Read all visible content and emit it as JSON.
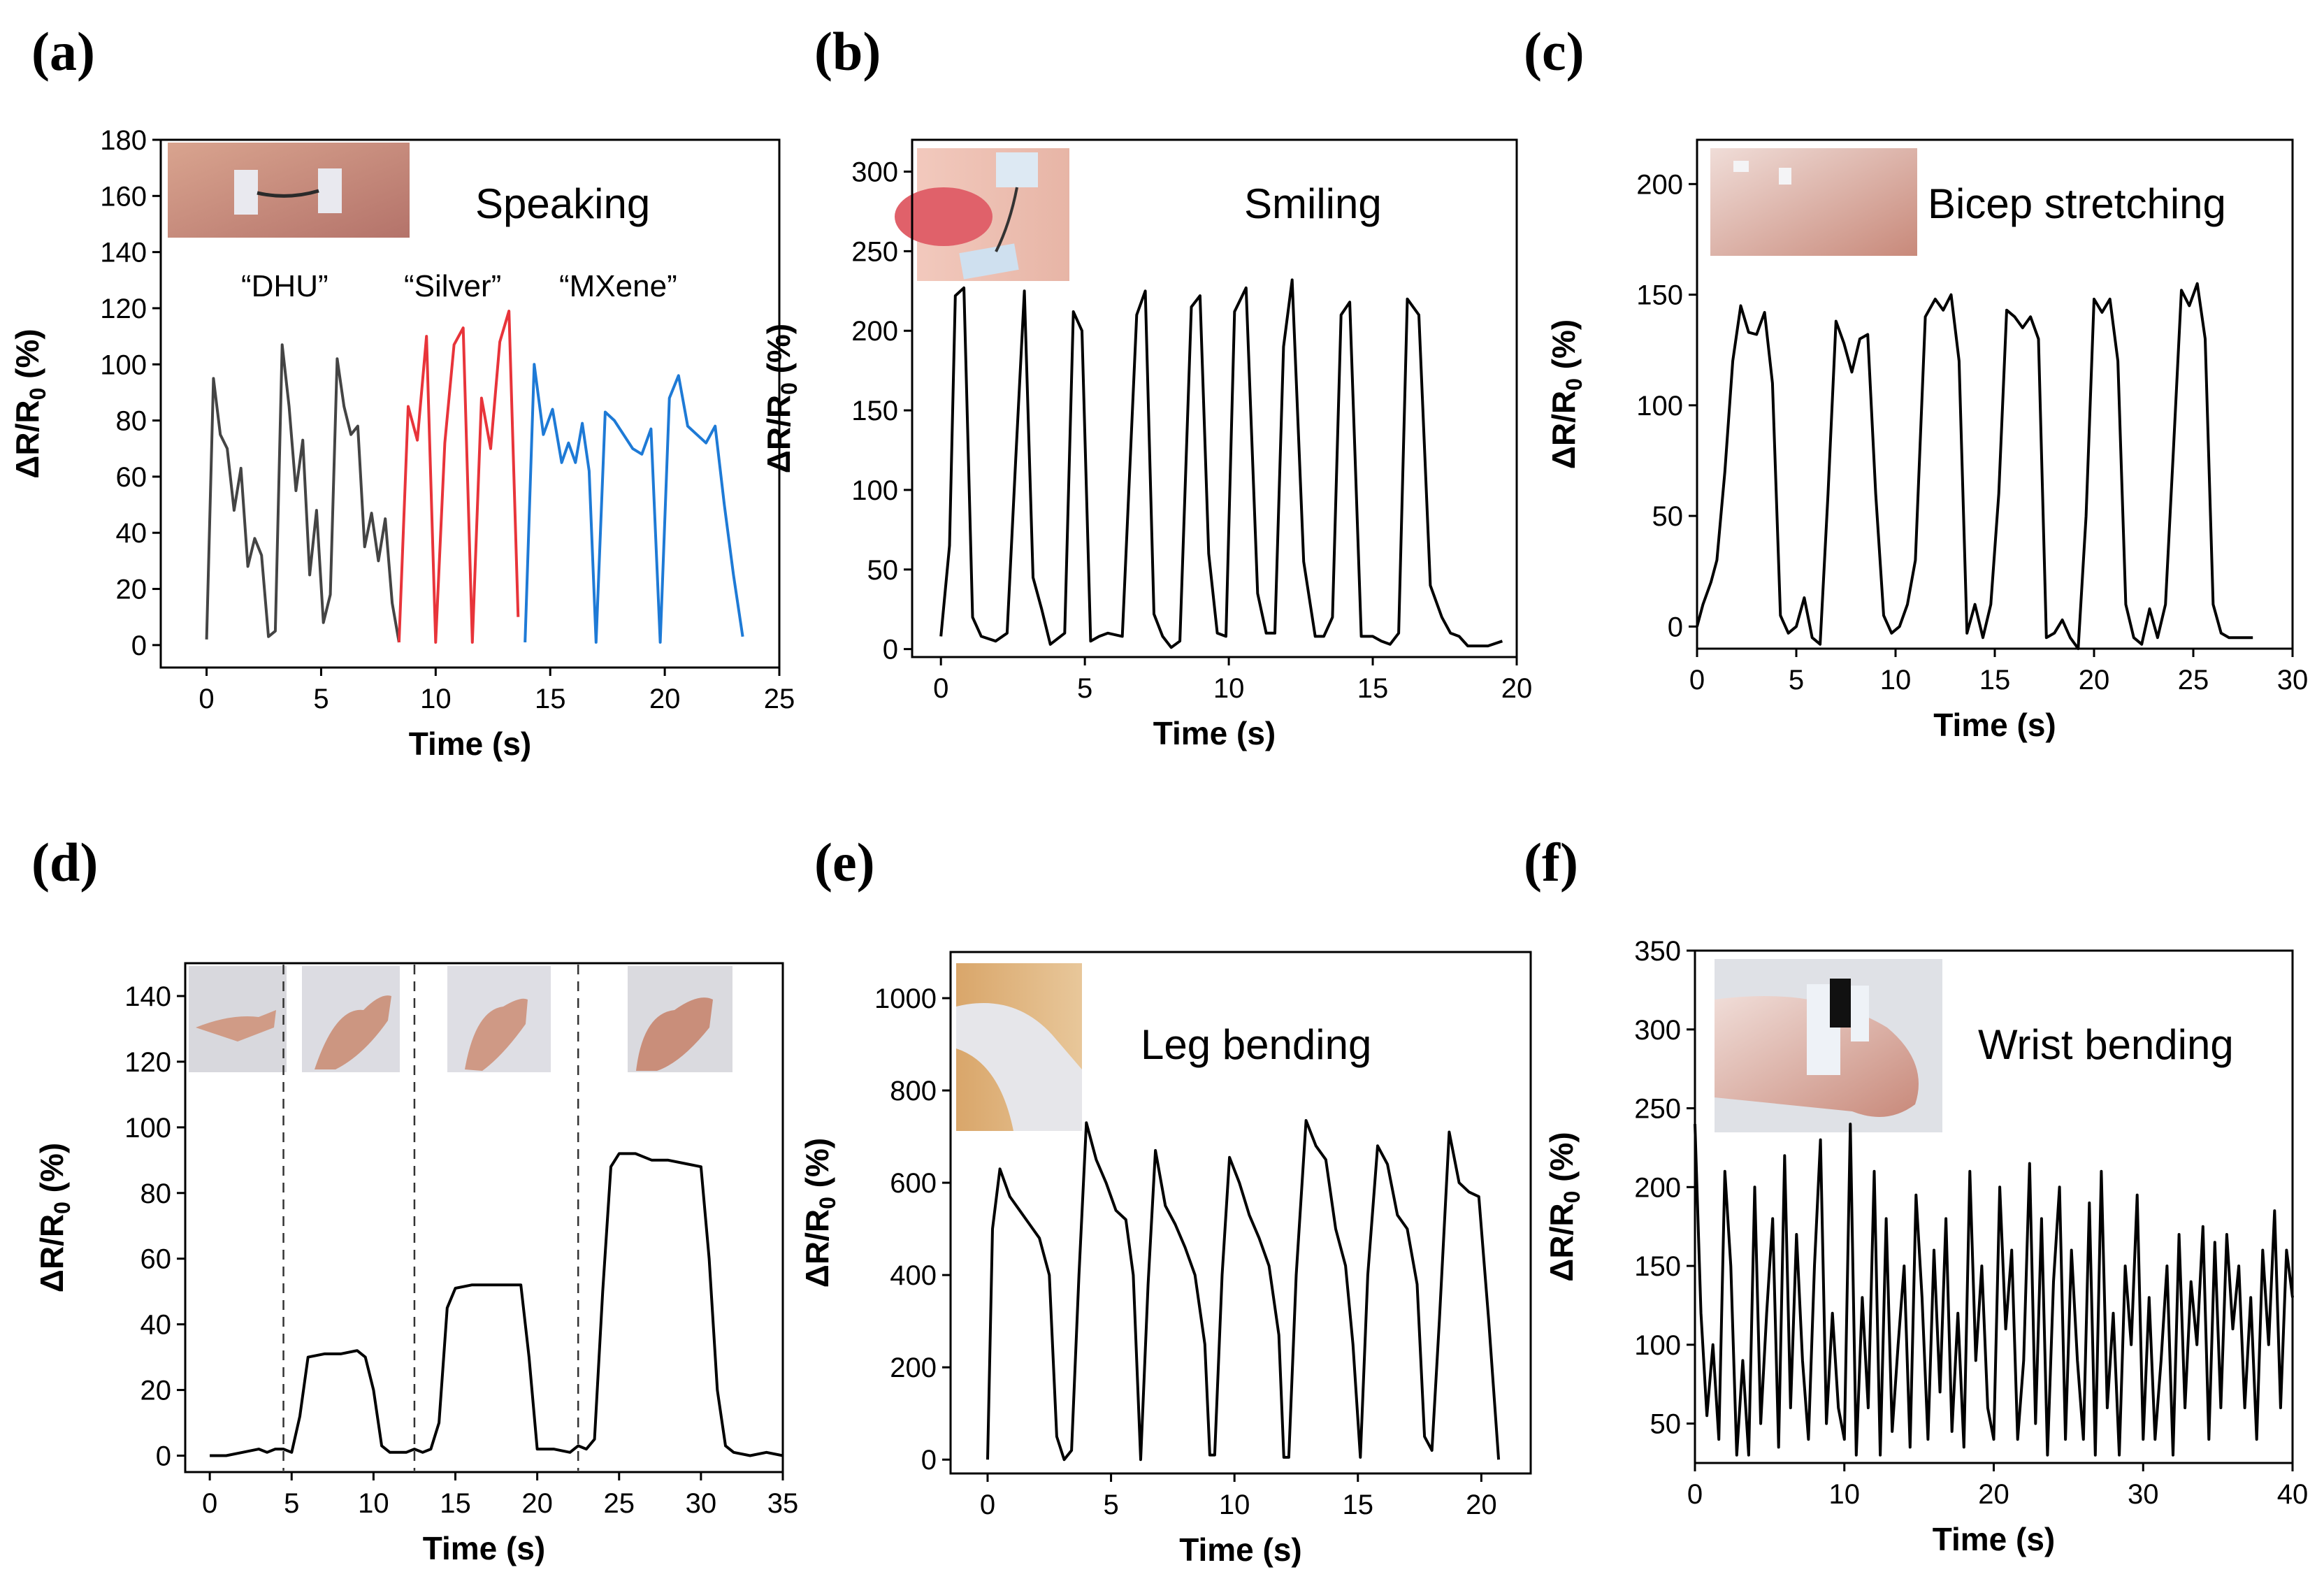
{
  "chart_data": [
    {
      "panel_label": "(a)",
      "type": "line",
      "xlabel": "Time (s)",
      "ylabel": "ΔR/R0 (%)",
      "xlim": [
        -2,
        25
      ],
      "ylim": [
        -8,
        180
      ],
      "xticks": [
        0,
        5,
        10,
        15,
        20,
        25
      ],
      "yticks": [
        0,
        20,
        40,
        60,
        80,
        100,
        120,
        140,
        160,
        180
      ],
      "annotation": "Speaking",
      "inset": "photo of sensor on throat",
      "labels": [
        "“DHU”",
        "“Silver”",
        "“MXene”"
      ],
      "series": [
        {
          "name": "DHU",
          "color": "#444444",
          "x": [
            0,
            0.3,
            0.6,
            0.9,
            1.2,
            1.5,
            1.8,
            2.1,
            2.4,
            2.7,
            3.0,
            3.3,
            3.6,
            3.9,
            4.2,
            4.5,
            4.8,
            5.1,
            5.4,
            5.7,
            6.0,
            6.3,
            6.6,
            6.9,
            7.2,
            7.5,
            7.8,
            8.1,
            8.4
          ],
          "y": [
            2,
            95,
            75,
            70,
            48,
            63,
            28,
            38,
            32,
            3,
            5,
            107,
            85,
            55,
            73,
            25,
            48,
            8,
            18,
            102,
            85,
            75,
            78,
            35,
            47,
            30,
            45,
            15,
            1
          ]
        },
        {
          "name": "Silver",
          "color": "#e8343a",
          "x": [
            8.4,
            8.8,
            9.2,
            9.6,
            10.0,
            10.4,
            10.8,
            11.2,
            11.6,
            12.0,
            12.4,
            12.8,
            13.2,
            13.6
          ],
          "y": [
            1,
            85,
            73,
            110,
            1,
            72,
            107,
            113,
            1,
            88,
            70,
            108,
            119,
            10
          ]
        },
        {
          "name": "MXene",
          "color": "#1e7ad6",
          "x": [
            13.9,
            14.3,
            14.7,
            15.1,
            15.5,
            15.8,
            16.1,
            16.4,
            16.7,
            17.0,
            17.4,
            17.8,
            18.2,
            18.6,
            19.0,
            19.4,
            19.8,
            20.2,
            20.6,
            21.0,
            21.4,
            21.8,
            22.2,
            22.6,
            23.0,
            23.4
          ],
          "y": [
            1,
            100,
            75,
            84,
            65,
            72,
            65,
            79,
            62,
            1,
            83,
            80,
            75,
            70,
            68,
            77,
            1,
            88,
            96,
            78,
            75,
            72,
            78,
            50,
            25,
            3
          ]
        }
      ]
    },
    {
      "panel_label": "(b)",
      "type": "line",
      "xlabel": "Time (s)",
      "ylabel": "ΔR/R0 (%)",
      "xlim": [
        -1,
        20
      ],
      "ylim": [
        -5,
        320
      ],
      "xticks": [
        0,
        5,
        10,
        15,
        20
      ],
      "yticks": [
        0,
        50,
        100,
        150,
        200,
        250,
        300
      ],
      "annotation": "Smiling",
      "inset": "photo of sensor near mouth",
      "series": [
        {
          "name": "smiling",
          "color": "#000000",
          "x": [
            0,
            0.3,
            0.5,
            0.8,
            1.1,
            1.4,
            1.9,
            2.3,
            2.6,
            2.9,
            3.2,
            3.5,
            3.8,
            4.3,
            4.6,
            4.9,
            5.2,
            5.5,
            5.8,
            6.3,
            6.8,
            7.1,
            7.4,
            7.7,
            8.0,
            8.3,
            8.7,
            9.0,
            9.3,
            9.6,
            9.9,
            10.2,
            10.6,
            11.0,
            11.3,
            11.6,
            11.9,
            12.2,
            12.6,
            13.0,
            13.3,
            13.6,
            13.9,
            14.2,
            14.6,
            15.0,
            15.3,
            15.6,
            15.9,
            16.2,
            16.6,
            17.0,
            17.4,
            17.7,
            18.0,
            18.3,
            18.6,
            19.0,
            19.5
          ],
          "y": [
            8,
            65,
            222,
            227,
            20,
            8,
            5,
            10,
            120,
            225,
            45,
            25,
            3,
            10,
            212,
            200,
            5,
            8,
            10,
            8,
            210,
            225,
            22,
            8,
            1,
            5,
            215,
            222,
            60,
            10,
            8,
            212,
            227,
            35,
            10,
            10,
            190,
            232,
            55,
            8,
            8,
            20,
            210,
            218,
            8,
            8,
            5,
            3,
            10,
            220,
            210,
            40,
            20,
            10,
            8,
            2,
            2,
            2,
            5
          ]
        }
      ]
    },
    {
      "panel_label": "(c)",
      "type": "line",
      "xlabel": "Time (s)",
      "ylabel": "ΔR/R0 (%)",
      "xlim": [
        0,
        30
      ],
      "ylim": [
        -10,
        220
      ],
      "xticks": [
        0,
        5,
        10,
        15,
        20,
        25,
        30
      ],
      "yticks": [
        0,
        50,
        100,
        150,
        200
      ],
      "annotation": "Bicep stretching",
      "inset": "photo of sensor on arm",
      "series": [
        {
          "name": "bicep",
          "color": "#000000",
          "x": [
            0,
            0.3,
            0.7,
            1.0,
            1.4,
            1.8,
            2.2,
            2.6,
            3.0,
            3.4,
            3.8,
            4.2,
            4.6,
            5.0,
            5.4,
            5.8,
            6.2,
            6.6,
            7.0,
            7.4,
            7.8,
            8.2,
            8.6,
            9.0,
            9.4,
            9.8,
            10.2,
            10.6,
            11.0,
            11.5,
            12.0,
            12.4,
            12.8,
            13.2,
            13.6,
            14.0,
            14.4,
            14.8,
            15.2,
            15.6,
            16.0,
            16.4,
            16.8,
            17.2,
            17.6,
            18.0,
            18.4,
            18.8,
            19.2,
            19.6,
            20.0,
            20.4,
            20.8,
            21.2,
            21.6,
            22.0,
            22.4,
            22.8,
            23.2,
            23.6,
            24.0,
            24.4,
            24.8,
            25.2,
            25.6,
            26.0,
            26.4,
            26.8,
            27.2,
            27.6,
            28.0
          ],
          "y": [
            0,
            10,
            20,
            30,
            70,
            120,
            145,
            133,
            132,
            142,
            110,
            5,
            -3,
            0,
            13,
            -5,
            -8,
            60,
            138,
            128,
            115,
            130,
            132,
            60,
            5,
            -3,
            0,
            10,
            30,
            140,
            148,
            143,
            150,
            120,
            -3,
            10,
            -5,
            10,
            60,
            143,
            140,
            135,
            140,
            130,
            -5,
            -3,
            3,
            -5,
            -10,
            50,
            148,
            142,
            148,
            120,
            10,
            -5,
            -8,
            8,
            -5,
            10,
            80,
            152,
            145,
            155,
            130,
            10,
            -3,
            -5,
            -5,
            -5,
            -5
          ]
        }
      ]
    },
    {
      "panel_label": "(d)",
      "type": "line",
      "xlabel": "Time (s)",
      "ylabel": "ΔR/R0 (%)",
      "xlim": [
        -1.5,
        35
      ],
      "ylim": [
        -5,
        150
      ],
      "xticks": [
        0,
        5,
        10,
        15,
        20,
        25,
        30,
        35
      ],
      "yticks": [
        0,
        20,
        40,
        60,
        80,
        100,
        120,
        140
      ],
      "vlines": [
        4.5,
        12.5,
        22.5
      ],
      "inset": "four photos of finger bending",
      "series": [
        {
          "name": "finger",
          "color": "#000000",
          "x": [
            0,
            1,
            2,
            3,
            3.5,
            4,
            4.5,
            5,
            5.5,
            6,
            7,
            8,
            9,
            9.5,
            10,
            10.5,
            11,
            12,
            12.5,
            13,
            13.5,
            14,
            14.5,
            15,
            16,
            17,
            18,
            19,
            19.5,
            20,
            21,
            22,
            22.5,
            23,
            23.5,
            24,
            24.5,
            25,
            26,
            27,
            28,
            29,
            30,
            30.5,
            31,
            31.5,
            32,
            33,
            34,
            35
          ],
          "y": [
            0,
            0,
            1,
            2,
            1,
            2,
            2,
            1,
            12,
            30,
            31,
            31,
            32,
            30,
            20,
            3,
            1,
            1,
            2,
            1,
            2,
            10,
            45,
            51,
            52,
            52,
            52,
            52,
            30,
            2,
            2,
            1,
            3,
            2,
            5,
            50,
            88,
            92,
            92,
            90,
            90,
            89,
            88,
            60,
            20,
            3,
            1,
            0,
            1,
            0
          ]
        }
      ]
    },
    {
      "panel_label": "(e)",
      "type": "line",
      "xlabel": "Time (s)",
      "ylabel": "ΔR/R0 (%)",
      "xlim": [
        -1.5,
        22
      ],
      "ylim": [
        -30,
        1100
      ],
      "xticks": [
        0,
        5,
        10,
        15,
        20
      ],
      "yticks": [
        0,
        200,
        400,
        600,
        800,
        1000
      ],
      "annotation": "Leg bending",
      "inset": "photo of sensor on knee",
      "series": [
        {
          "name": "leg",
          "color": "#000000",
          "x": [
            0,
            0.2,
            0.5,
            0.9,
            1.3,
            1.7,
            2.1,
            2.5,
            2.8,
            3.1,
            3.4,
            3.7,
            4.0,
            4.4,
            4.8,
            5.2,
            5.6,
            5.9,
            6.2,
            6.5,
            6.8,
            7.2,
            7.6,
            8.0,
            8.4,
            8.8,
            9.0,
            9.2,
            9.5,
            9.8,
            10.2,
            10.6,
            11.0,
            11.4,
            11.8,
            12.0,
            12.2,
            12.5,
            12.9,
            13.3,
            13.7,
            14.1,
            14.5,
            14.8,
            15.1,
            15.4,
            15.8,
            16.2,
            16.6,
            17.0,
            17.4,
            17.7,
            18.0,
            18.3,
            18.7,
            19.1,
            19.5,
            19.9,
            20.3,
            20.7
          ],
          "y": [
            0,
            500,
            630,
            570,
            540,
            510,
            480,
            400,
            50,
            0,
            20,
            400,
            730,
            650,
            600,
            540,
            520,
            400,
            0,
            380,
            670,
            550,
            510,
            460,
            400,
            250,
            10,
            10,
            400,
            655,
            600,
            530,
            480,
            420,
            270,
            5,
            5,
            400,
            735,
            680,
            650,
            500,
            420,
            250,
            5,
            400,
            680,
            640,
            530,
            500,
            380,
            50,
            20,
            300,
            710,
            600,
            580,
            570,
            300,
            0
          ]
        }
      ]
    },
    {
      "panel_label": "(f)",
      "type": "line",
      "xlabel": "Time (s)",
      "ylabel": "ΔR/R0 (%)",
      "xlim": [
        0,
        40
      ],
      "ylim": [
        25,
        350
      ],
      "xticks": [
        0,
        10,
        20,
        30,
        40
      ],
      "yticks": [
        50,
        100,
        150,
        200,
        250,
        300,
        350
      ],
      "annotation": "Wrist bending",
      "inset": "photo of sensor on wrist",
      "series": [
        {
          "name": "wrist",
          "color": "#000000",
          "x": [
            0,
            0.4,
            0.8,
            1.2,
            1.6,
            2.0,
            2.4,
            2.8,
            3.2,
            3.6,
            4.0,
            4.4,
            4.8,
            5.2,
            5.6,
            6.0,
            6.4,
            6.8,
            7.2,
            7.6,
            8.0,
            8.4,
            8.8,
            9.2,
            9.6,
            10.0,
            10.4,
            10.8,
            11.2,
            11.6,
            12.0,
            12.4,
            12.8,
            13.2,
            13.6,
            14.0,
            14.4,
            14.8,
            15.2,
            15.6,
            16.0,
            16.4,
            16.8,
            17.2,
            17.6,
            18.0,
            18.4,
            18.8,
            19.2,
            19.6,
            20.0,
            20.4,
            20.8,
            21.2,
            21.6,
            22.0,
            22.4,
            22.8,
            23.2,
            23.6,
            24.0,
            24.4,
            24.8,
            25.2,
            25.6,
            26.0,
            26.4,
            26.8,
            27.2,
            27.6,
            28.0,
            28.4,
            28.8,
            29.2,
            29.6,
            30.0,
            30.4,
            30.8,
            31.2,
            31.6,
            32.0,
            32.4,
            32.8,
            33.2,
            33.6,
            34.0,
            34.4,
            34.8,
            35.2,
            35.6,
            36.0,
            36.4,
            36.8,
            37.2,
            37.6,
            38.0,
            38.4,
            38.8,
            39.2,
            39.6,
            40.0
          ],
          "y": [
            240,
            120,
            55,
            100,
            40,
            210,
            150,
            30,
            90,
            30,
            200,
            50,
            120,
            180,
            35,
            220,
            60,
            170,
            90,
            40,
            150,
            230,
            50,
            120,
            60,
            40,
            240,
            30,
            130,
            60,
            210,
            30,
            180,
            45,
            100,
            150,
            35,
            195,
            130,
            40,
            160,
            70,
            180,
            45,
            120,
            35,
            210,
            90,
            150,
            60,
            40,
            200,
            110,
            160,
            40,
            90,
            215,
            50,
            180,
            30,
            140,
            200,
            40,
            160,
            90,
            40,
            190,
            30,
            210,
            60,
            120,
            30,
            150,
            100,
            195,
            40,
            130,
            40,
            90,
            150,
            30,
            170,
            60,
            140,
            100,
            175,
            40,
            165,
            60,
            170,
            110,
            150,
            60,
            130,
            40,
            160,
            100,
            185,
            60,
            160,
            130
          ]
        }
      ]
    }
  ]
}
